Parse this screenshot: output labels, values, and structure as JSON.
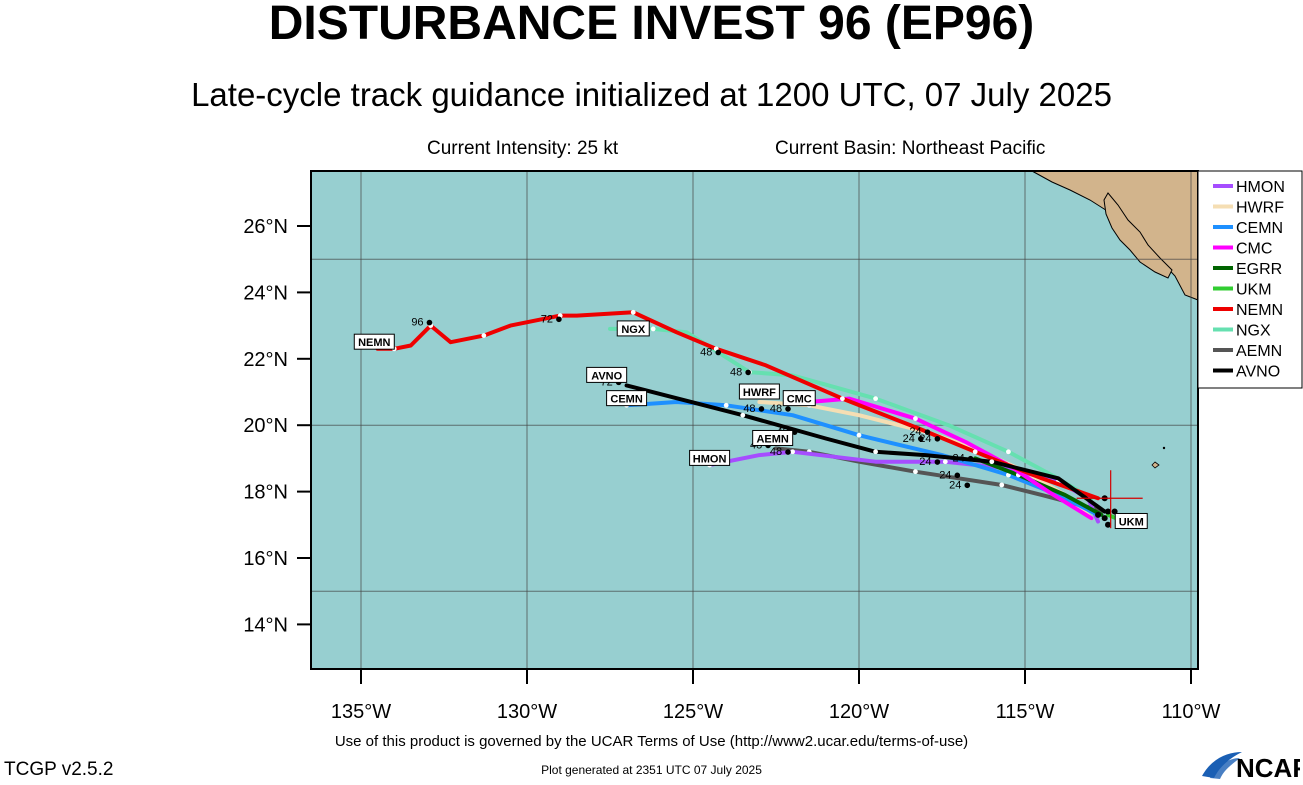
{
  "title": "DISTURBANCE INVEST 96 (EP96)",
  "subtitle": "Late-cycle track guidance initialized at 1200 UTC, 07 July 2025",
  "current_intensity": "Current Intensity: 25 kt",
  "current_basin": "Current Basin: Northeast Pacific",
  "footer_terms": "Use of this product is governed by the UCAR Terms of Use (http://www2.ucar.edu/terms-of-use)",
  "footer_generated": "Plot generated at 2351 UTC   07 July 2025",
  "version": "TCGP v2.5.2",
  "logo_text": "NCAR",
  "lat_ticks": [
    "26°N",
    "24°N",
    "22°N",
    "20°N",
    "18°N",
    "16°N",
    "14°N"
  ],
  "lon_ticks": [
    "135°W",
    "130°W",
    "125°W",
    "120°W",
    "115°W",
    "110°W"
  ],
  "colors": {
    "ocean": "#97cfd0",
    "land": "#d2b48c",
    "grid": "#444444"
  },
  "models": [
    {
      "name": "HMON",
      "color": "#a64dff",
      "label": "HMON",
      "track": [
        [
          17.1,
          -112.8
        ],
        [
          17.8,
          -113.1
        ],
        [
          18.3,
          -114.0
        ],
        [
          18.7,
          -115.5
        ],
        [
          18.9,
          -117.4
        ],
        [
          18.9,
          -119.5
        ],
        [
          19.2,
          -122.0
        ],
        [
          19.1,
          -123.0
        ],
        [
          18.8,
          -124.5
        ]
      ]
    },
    {
      "name": "HWRF",
      "color": "#f5deb3",
      "label": "HWRF",
      "track": [
        [
          17.2,
          -113.0
        ],
        [
          17.9,
          -113.8
        ],
        [
          18.6,
          -115.0
        ],
        [
          19.3,
          -116.5
        ],
        [
          19.8,
          -118.0
        ],
        [
          20.3,
          -120.0
        ],
        [
          20.6,
          -121.5
        ],
        [
          20.7,
          -123.0
        ]
      ]
    },
    {
      "name": "CEMN",
      "color": "#1e90ff",
      "label": "CEMN",
      "track": [
        [
          17.3,
          -112.8
        ],
        [
          17.9,
          -114.0
        ],
        [
          18.5,
          -115.5
        ],
        [
          19.1,
          -117.5
        ],
        [
          19.7,
          -120.0
        ],
        [
          20.3,
          -122.0
        ],
        [
          20.6,
          -124.0
        ],
        [
          20.7,
          -125.5
        ],
        [
          20.6,
          -127.0
        ]
      ]
    },
    {
      "name": "CMC",
      "color": "#ff00ff",
      "label": "CMC",
      "track": [
        [
          17.2,
          -113.0
        ],
        [
          18.0,
          -114.3
        ],
        [
          18.8,
          -115.5
        ],
        [
          19.5,
          -116.8
        ],
        [
          20.2,
          -118.3
        ],
        [
          20.8,
          -120.3
        ],
        [
          20.7,
          -121.5
        ]
      ]
    },
    {
      "name": "EGRR",
      "color": "#006400",
      "label": "EGRR",
      "track": [
        [
          17.3,
          -112.7
        ],
        [
          17.9,
          -113.8
        ],
        [
          18.5,
          -115.2
        ],
        [
          19.0,
          -116.5
        ]
      ]
    },
    {
      "name": "UKM",
      "color": "#32cd32",
      "label": "UKM",
      "track": [
        [
          17.3,
          -112.5
        ],
        [
          17.0,
          -111.8
        ]
      ]
    },
    {
      "name": "NEMN",
      "color": "#ee0000",
      "label": "NEMN",
      "track": [
        [
          17.8,
          -112.8
        ],
        [
          18.4,
          -114.5
        ],
        [
          19.2,
          -116.5
        ],
        [
          19.9,
          -118.2
        ],
        [
          20.8,
          -120.5
        ],
        [
          21.8,
          -122.8
        ],
        [
          22.3,
          -124.3
        ],
        [
          22.8,
          -125.5
        ],
        [
          23.4,
          -126.8
        ],
        [
          23.3,
          -128.5
        ],
        [
          23.3,
          -129.0
        ],
        [
          23.0,
          -130.5
        ],
        [
          22.7,
          -131.3
        ],
        [
          22.5,
          -132.3
        ],
        [
          23.0,
          -132.9
        ],
        [
          22.4,
          -133.5
        ],
        [
          22.3,
          -134.0
        ],
        [
          22.3,
          -134.5
        ]
      ]
    },
    {
      "name": "NGX",
      "color": "#66e0b0",
      "label": "NGX",
      "track": [
        [
          17.8,
          -113.0
        ],
        [
          18.5,
          -114.2
        ],
        [
          19.2,
          -115.5
        ],
        [
          20.0,
          -117.3
        ],
        [
          20.8,
          -119.5
        ],
        [
          21.5,
          -122.0
        ],
        [
          21.6,
          -123.3
        ],
        [
          22.8,
          -125.2
        ],
        [
          22.9,
          -126.2
        ],
        [
          22.9,
          -127.5
        ]
      ]
    },
    {
      "name": "AEMN",
      "color": "#555555",
      "label": "AEMN",
      "track": [
        [
          17.4,
          -112.6
        ],
        [
          17.9,
          -114.5
        ],
        [
          18.2,
          -115.7
        ],
        [
          18.4,
          -117.0
        ],
        [
          18.6,
          -118.3
        ],
        [
          18.9,
          -120.0
        ],
        [
          19.2,
          -121.5
        ],
        [
          19.3,
          -122.5
        ]
      ]
    },
    {
      "name": "AVNO",
      "color": "#000000",
      "label": "AVNO",
      "track": [
        [
          17.4,
          -112.6
        ],
        [
          18.4,
          -114.0
        ],
        [
          18.9,
          -116.0
        ],
        [
          19.1,
          -118.0
        ],
        [
          19.2,
          -119.5
        ],
        [
          19.6,
          -121.0
        ],
        [
          20.3,
          -123.5
        ],
        [
          21.2,
          -127.0
        ]
      ]
    }
  ],
  "legend_entries": [
    "HMON",
    "HWRF",
    "CEMN",
    "CMC",
    "EGRR",
    "UKM",
    "NEMN",
    "NGX",
    "AEMN",
    "AVNO"
  ],
  "hour_labels": [
    {
      "text": "96",
      "lat": 23.0,
      "lon": -133.3
    },
    {
      "text": "72",
      "lat": 23.1,
      "lon": -129.4
    },
    {
      "text": "72",
      "lat": 21.2,
      "lon": -127.6
    },
    {
      "text": "48",
      "lat": 22.1,
      "lon": -124.6
    },
    {
      "text": "48",
      "lat": 21.5,
      "lon": -123.7
    },
    {
      "text": "48",
      "lat": 20.4,
      "lon": -123.3
    },
    {
      "text": "48",
      "lat": 20.4,
      "lon": -122.5
    },
    {
      "text": "48",
      "lat": 19.7,
      "lon": -122.3
    },
    {
      "text": "48",
      "lat": 19.3,
      "lon": -123.1
    },
    {
      "text": "48",
      "lat": 19.1,
      "lon": -122.5
    },
    {
      "text": "24",
      "lat": 19.7,
      "lon": -118.3
    },
    {
      "text": "24",
      "lat": 19.5,
      "lon": -118.5
    },
    {
      "text": "24",
      "lat": 19.5,
      "lon": -118.0
    },
    {
      "text": "24",
      "lat": 18.9,
      "lon": -117.0
    },
    {
      "text": "24",
      "lat": 18.8,
      "lon": -118.0
    },
    {
      "text": "24",
      "lat": 18.4,
      "lon": -117.4
    },
    {
      "text": "24",
      "lat": 18.1,
      "lon": -117.1
    }
  ],
  "track_labels": [
    {
      "text": "NEMN",
      "lat": 22.5,
      "lon": -134.6
    },
    {
      "text": "NGX",
      "lat": 22.9,
      "lon": -126.8
    },
    {
      "text": "AVNO",
      "lat": 21.5,
      "lon": -127.6
    },
    {
      "text": "HWRF",
      "lat": 21.0,
      "lon": -123.0
    },
    {
      "text": "CEMN",
      "lat": 20.8,
      "lon": -127.0
    },
    {
      "text": "CMC",
      "lat": 20.8,
      "lon": -121.8
    },
    {
      "text": "AEMN",
      "lat": 19.6,
      "lon": -122.6
    },
    {
      "text": "HMON",
      "lat": 19.0,
      "lon": -124.5
    },
    {
      "text": "UKM",
      "lat": 17.1,
      "lon": -111.8
    }
  ],
  "current_position": {
    "lat": 17.8,
    "lon": -112.6
  }
}
